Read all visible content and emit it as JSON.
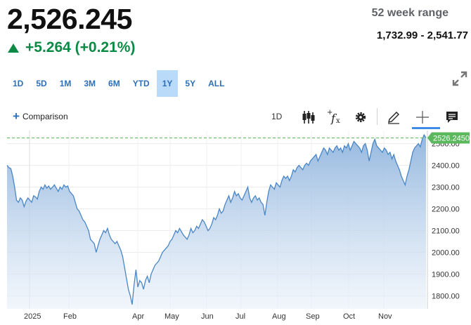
{
  "quote": {
    "price": "2,526.245",
    "change": "+5.264 (+0.21%)",
    "range_title": "52 week range",
    "range_value": "1,732.99 - 2,541.77"
  },
  "colors": {
    "up": "#0b8a45",
    "accent": "#2e6fb7",
    "line": "#4a86c5",
    "last_price": "#5cb85c"
  },
  "ranges": [
    {
      "label": "1D",
      "active": false
    },
    {
      "label": "5D",
      "active": false
    },
    {
      "label": "1M",
      "active": false
    },
    {
      "label": "3M",
      "active": false
    },
    {
      "label": "6M",
      "active": false
    },
    {
      "label": "YTD",
      "active": false
    },
    {
      "label": "1Y",
      "active": true
    },
    {
      "label": "5Y",
      "active": false
    },
    {
      "label": "ALL",
      "active": false
    }
  ],
  "toolbar": {
    "comparison_label": "Comparison",
    "interval_label": "1D",
    "icons": [
      "candlestick-icon",
      "function-icon",
      "gear-icon",
      "pencil-icon",
      "crosshair-icon",
      "comment-icon"
    ]
  },
  "chart_data": {
    "type": "area",
    "x_labels": [
      "2025",
      "Feb",
      "Apr",
      "May",
      "Jun",
      "Jul",
      "Aug",
      "Sep",
      "Oct",
      "Nov"
    ],
    "y_ticks": [
      1800,
      1900,
      2000,
      2100,
      2200,
      2300,
      2400,
      2500
    ],
    "y_tick_labels": [
      "1800.00",
      "1900.00",
      "2000.00",
      "2100.00",
      "2200.00",
      "2300.00",
      "2400.00",
      "2500.00"
    ],
    "ylim": [
      1740,
      2560
    ],
    "grid": true,
    "last_value": 2526.245,
    "last_label": "2526.2450",
    "series": [
      {
        "values": [
          2400,
          2390,
          2385,
          2350,
          2300,
          2240,
          2230,
          2250,
          2240,
          2210,
          2235,
          2250,
          2240,
          2230,
          2260,
          2255,
          2245,
          2280,
          2300,
          2290,
          2310,
          2295,
          2305,
          2290,
          2300,
          2310,
          2295,
          2280,
          2300,
          2290,
          2310,
          2300,
          2305,
          2280,
          2270,
          2260,
          2230,
          2200,
          2190,
          2170,
          2150,
          2140,
          2120,
          2100,
          2060,
          2050,
          2040,
          2000,
          2030,
          2060,
          2080,
          2100,
          2090,
          2110,
          2080,
          2060,
          2050,
          2040,
          2050,
          2030,
          2010,
          1980,
          1930,
          1880,
          1830,
          1800,
          1760,
          1850,
          1920,
          1840,
          1870,
          1860,
          1830,
          1870,
          1890,
          1860,
          1900,
          1920,
          1940,
          1950,
          1960,
          1980,
          2000,
          2010,
          2020,
          2030,
          2050,
          2060,
          2080,
          2100,
          2090,
          2110,
          2095,
          2080,
          2070,
          2060,
          2080,
          2110,
          2090,
          2100,
          2120,
          2110,
          2130,
          2150,
          2140,
          2120,
          2100,
          2110,
          2130,
          2160,
          2150,
          2170,
          2200,
          2180,
          2190,
          2220,
          2240,
          2260,
          2230,
          2250,
          2280,
          2260,
          2270,
          2250,
          2240,
          2260,
          2280,
          2300,
          2250,
          2230,
          2250,
          2260,
          2240,
          2250,
          2230,
          2220,
          2170,
          2230,
          2280,
          2310,
          2300,
          2290,
          2320,
          2310,
          2300,
          2330,
          2350,
          2340,
          2350,
          2330,
          2350,
          2380,
          2370,
          2390,
          2400,
          2390,
          2380,
          2400,
          2410,
          2400,
          2420,
          2430,
          2440,
          2450,
          2420,
          2440,
          2460,
          2480,
          2470,
          2450,
          2480,
          2470,
          2460,
          2480,
          2490,
          2470,
          2480,
          2460,
          2490,
          2480,
          2500,
          2470,
          2490,
          2510,
          2500,
          2490,
          2480,
          2460,
          2490,
          2500,
          2470,
          2420,
          2460,
          2500,
          2520,
          2490,
          2480,
          2470,
          2460,
          2480,
          2470,
          2450,
          2460,
          2430,
          2450,
          2420,
          2400,
          2380,
          2350,
          2330,
          2310,
          2350,
          2380,
          2420,
          2460,
          2480,
          2490,
          2500,
          2485,
          2520,
          2540,
          2526.245
        ]
      }
    ]
  }
}
